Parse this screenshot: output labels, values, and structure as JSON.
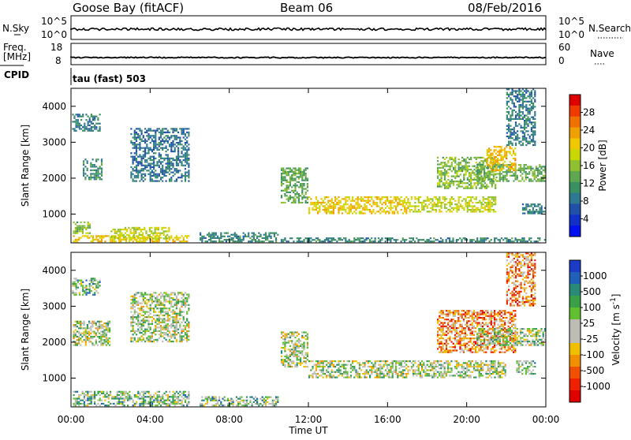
{
  "header": {
    "station": "Goose Bay (fitACF)",
    "beam": "Beam 06",
    "date": "08/Feb/2016"
  },
  "aux_panels": {
    "nsky_label": "N.Sky",
    "nsearch_label": "N.Search",
    "noise_ticks_left": [
      "10^5",
      "10^0"
    ],
    "noise_ticks_right": [
      "10^5",
      "10^0"
    ],
    "freq_label_1": "Freq.",
    "freq_label_2": "[MHz]",
    "freq_ticks": [
      "18",
      "8"
    ],
    "nave_label": "Nave",
    "nave_ticks": [
      "60",
      "0"
    ],
    "cpid_label": "CPID",
    "cpid_value": "tau (fast) 503"
  },
  "chart_data": [
    {
      "type": "heatmap",
      "name": "power",
      "xlabel": "Time UT",
      "ylabel": "Slant Range [km]",
      "xlim_hours": [
        0,
        24
      ],
      "ylim_km": [
        200,
        4500
      ],
      "x_ticks": [
        "00:00",
        "04:00",
        "08:00",
        "12:00",
        "16:00",
        "20:00",
        "00:00"
      ],
      "y_ticks": [
        1000,
        2000,
        3000,
        4000
      ],
      "colorbar": {
        "label": "Power [dB]",
        "range": [
          0,
          30
        ],
        "ticks": [
          "28",
          "24",
          "20",
          "16",
          "12",
          "8",
          "4"
        ],
        "colors": [
          "#e00000",
          "#f03a00",
          "#f07000",
          "#f0a000",
          "#f0c800",
          "#c8d800",
          "#90c030",
          "#60a850",
          "#3a9060",
          "#2e7890",
          "#2050a8",
          "#1030c8",
          "#0010f0"
        ]
      },
      "regions": [
        {
          "t": [
            0.05,
            1.5
          ],
          "r": [
            3300,
            3800
          ],
          "level": 8
        },
        {
          "t": [
            0.6,
            1.6
          ],
          "r": [
            1950,
            2550
          ],
          "level": 10
        },
        {
          "t": [
            0.1,
            1.0
          ],
          "r": [
            450,
            800
          ],
          "level": 14
        },
        {
          "t": [
            0.1,
            6.0
          ],
          "r": [
            220,
            420
          ],
          "level": 20
        },
        {
          "t": [
            2.0,
            5.0
          ],
          "r": [
            300,
            650
          ],
          "level": 17
        },
        {
          "t": [
            3.0,
            6.0
          ],
          "r": [
            1900,
            3400
          ],
          "level": 7
        },
        {
          "t": [
            6.5,
            10.5
          ],
          "r": [
            220,
            500
          ],
          "level": 9
        },
        {
          "t": [
            10.6,
            12.0
          ],
          "r": [
            1300,
            2300
          ],
          "level": 12
        },
        {
          "t": [
            12.0,
            17.0
          ],
          "r": [
            1000,
            1500
          ],
          "level": 20
        },
        {
          "t": [
            17.0,
            21.5
          ],
          "r": [
            1050,
            1500
          ],
          "level": 17
        },
        {
          "t": [
            18.5,
            21.5
          ],
          "r": [
            1700,
            2600
          ],
          "level": 14
        },
        {
          "t": [
            20.5,
            24.0
          ],
          "r": [
            1900,
            2400
          ],
          "level": 13
        },
        {
          "t": [
            21.0,
            22.5
          ],
          "r": [
            2200,
            2900
          ],
          "level": 21
        },
        {
          "t": [
            22.0,
            23.5
          ],
          "r": [
            2900,
            4500
          ],
          "level": 8
        },
        {
          "t": [
            22.8,
            24.0
          ],
          "r": [
            1000,
            1300
          ],
          "level": 8
        },
        {
          "t": [
            10.6,
            24.0
          ],
          "r": [
            220,
            350
          ],
          "level": 9
        }
      ]
    },
    {
      "type": "heatmap",
      "name": "velocity",
      "xlabel": "Time UT",
      "ylabel": "Slant Range [km]",
      "xlim_hours": [
        0,
        24
      ],
      "ylim_km": [
        200,
        4500
      ],
      "x_ticks": [
        "00:00",
        "04:00",
        "08:00",
        "12:00",
        "16:00",
        "20:00",
        "00:00"
      ],
      "y_ticks": [
        1000,
        2000,
        3000,
        4000
      ],
      "colorbar": {
        "label": "Velocity [m s^-1]",
        "ticks": [
          "1000",
          "500",
          "100",
          "25",
          "-25",
          "-100",
          "-500",
          "-1000"
        ],
        "colors": [
          "#1c3cc8",
          "#2060b8",
          "#2a8a78",
          "#3aa048",
          "#60c030",
          "#bdbdb5",
          "#bdbdb5",
          "#f0c000",
          "#f09000",
          "#f05000",
          "#f02000",
          "#e00000"
        ]
      },
      "regions": [
        {
          "t": [
            0.05,
            1.5
          ],
          "r": [
            3300,
            3800
          ],
          "level": 4
        },
        {
          "t": [
            0.1,
            2.0
          ],
          "r": [
            1900,
            2600
          ],
          "level": 5
        },
        {
          "t": [
            0.1,
            6.0
          ],
          "r": [
            220,
            650
          ],
          "level": 4
        },
        {
          "t": [
            3.0,
            6.0
          ],
          "r": [
            2000,
            3400
          ],
          "level": 5
        },
        {
          "t": [
            6.5,
            10.5
          ],
          "r": [
            220,
            500
          ],
          "level": 4
        },
        {
          "t": [
            10.6,
            12.0
          ],
          "r": [
            1300,
            2300
          ],
          "level": 5
        },
        {
          "t": [
            12.0,
            22.0
          ],
          "r": [
            1000,
            1500
          ],
          "level": 5
        },
        {
          "t": [
            18.5,
            22.5
          ],
          "r": [
            1700,
            2900
          ],
          "level": 8
        },
        {
          "t": [
            20.5,
            24.0
          ],
          "r": [
            1900,
            2400
          ],
          "level": 5
        },
        {
          "t": [
            22.5,
            23.5
          ],
          "r": [
            1100,
            1500
          ],
          "level": 4
        },
        {
          "t": [
            22.0,
            23.5
          ],
          "r": [
            3000,
            4500
          ],
          "level": 8
        }
      ]
    }
  ]
}
